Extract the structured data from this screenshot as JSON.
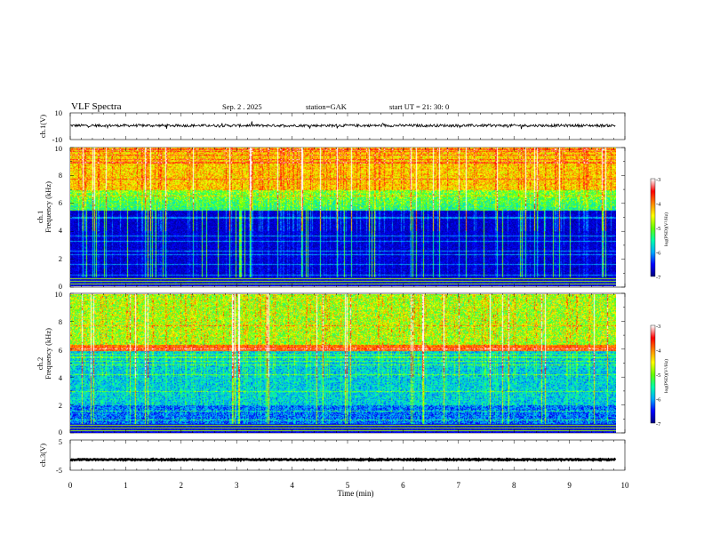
{
  "header": {
    "title": "VLF  Spectra",
    "date": "Sep. 2   . 2025",
    "station": "station=GAK",
    "start_ut": "start  UT  =    21: 30: 0"
  },
  "chart_data": [
    {
      "id": "ch1-waveform",
      "type": "line",
      "ylabel": "ch.1(V)",
      "yticks": [
        "10",
        "-10"
      ],
      "ylim": [
        -10,
        10
      ],
      "baseline_v": 0.5,
      "amplitude_v": 2
    },
    {
      "id": "ch1-spectrogram",
      "type": "heatmap",
      "ylabel_line1": "ch.1",
      "ylabel_line2": "Frequency  (kHz)",
      "yticks": [
        "0",
        "2",
        "4",
        "6",
        "8",
        "10"
      ],
      "ylim_khz": [
        0,
        10
      ],
      "colorbar": {
        "label": "log(PSD)(V²/Hz)",
        "ticks": [
          "-3",
          "-4",
          "-5",
          "-6",
          "-7"
        ],
        "range": [
          -7,
          -3
        ]
      }
    },
    {
      "id": "ch2-spectrogram",
      "type": "heatmap",
      "ylabel_line1": "ch.2",
      "ylabel_line2": "Frequency  (kHz)",
      "yticks": [
        "0",
        "2",
        "4",
        "6",
        "8",
        "10"
      ],
      "ylim_khz": [
        0,
        10
      ],
      "colorbar": {
        "label": "log(PSD)(V²/Hz)",
        "ticks": [
          "-3",
          "-4",
          "-5",
          "-6",
          "-7"
        ],
        "range": [
          -7,
          -3
        ]
      }
    },
    {
      "id": "ch3-waveform",
      "type": "line",
      "ylabel": "ch.3(V)",
      "yticks": [
        "5",
        "-5"
      ],
      "ylim": [
        -5,
        5
      ],
      "baseline_v": -1.5
    }
  ],
  "xaxis": {
    "label": "Time  (min)",
    "ticks": [
      "0",
      "1",
      "2",
      "3",
      "4",
      "5",
      "6",
      "7",
      "8",
      "9",
      "10"
    ],
    "xlim_min": [
      0,
      10
    ],
    "data_end_min": 9.83
  },
  "colors": {
    "colormap": [
      "#00007a",
      "#0000ff",
      "#00aaff",
      "#00ffaa",
      "#66ff00",
      "#ffff00",
      "#ff8800",
      "#ff0000",
      "#ffffff"
    ]
  }
}
